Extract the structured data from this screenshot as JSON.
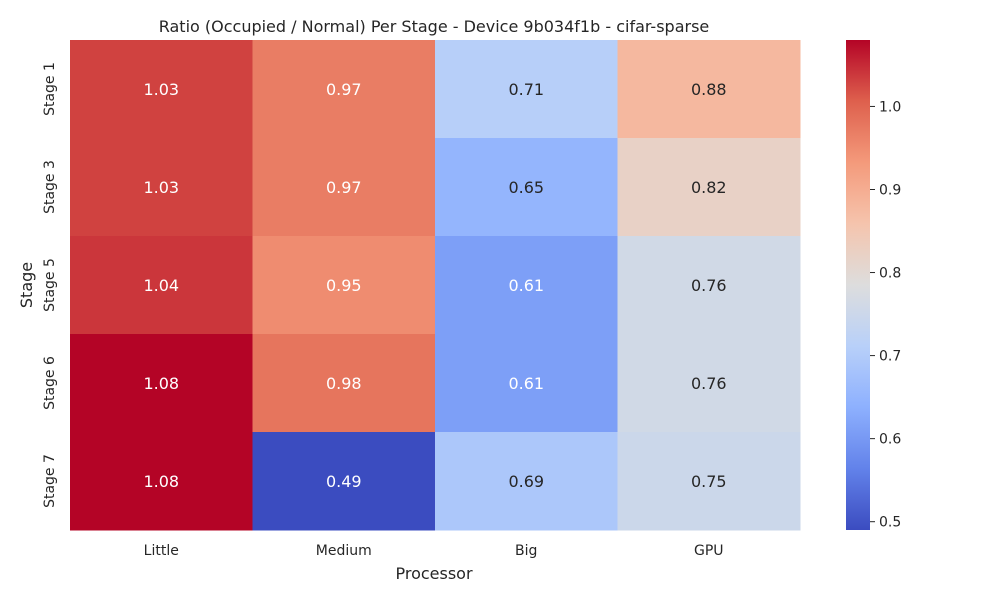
{
  "chart_data": {
    "type": "heatmap",
    "title": "Ratio (Occupied / Normal) Per Stage - Device 9b034f1b - cifar-sparse",
    "xlabel": "Processor",
    "ylabel": "Stage",
    "x_categories": [
      "Little",
      "Medium",
      "Big",
      "GPU"
    ],
    "y_categories": [
      "Stage 1",
      "Stage 3",
      "Stage 5",
      "Stage 6",
      "Stage 7"
    ],
    "values": [
      [
        1.03,
        0.97,
        0.71,
        0.88
      ],
      [
        1.03,
        0.97,
        0.65,
        0.82
      ],
      [
        1.04,
        0.95,
        0.61,
        0.76
      ],
      [
        1.08,
        0.98,
        0.61,
        0.76
      ],
      [
        1.08,
        0.49,
        0.69,
        0.75
      ]
    ],
    "value_format": "0.00",
    "colormap": "coolwarm",
    "vmin": 0.49,
    "vmax": 1.08,
    "colorbar_ticks": [
      "0.5",
      "0.6",
      "0.7",
      "0.8",
      "0.9",
      "1.0"
    ],
    "annotation_colors": {
      "on_dark": "#ffffff",
      "on_light": "#262626"
    }
  }
}
